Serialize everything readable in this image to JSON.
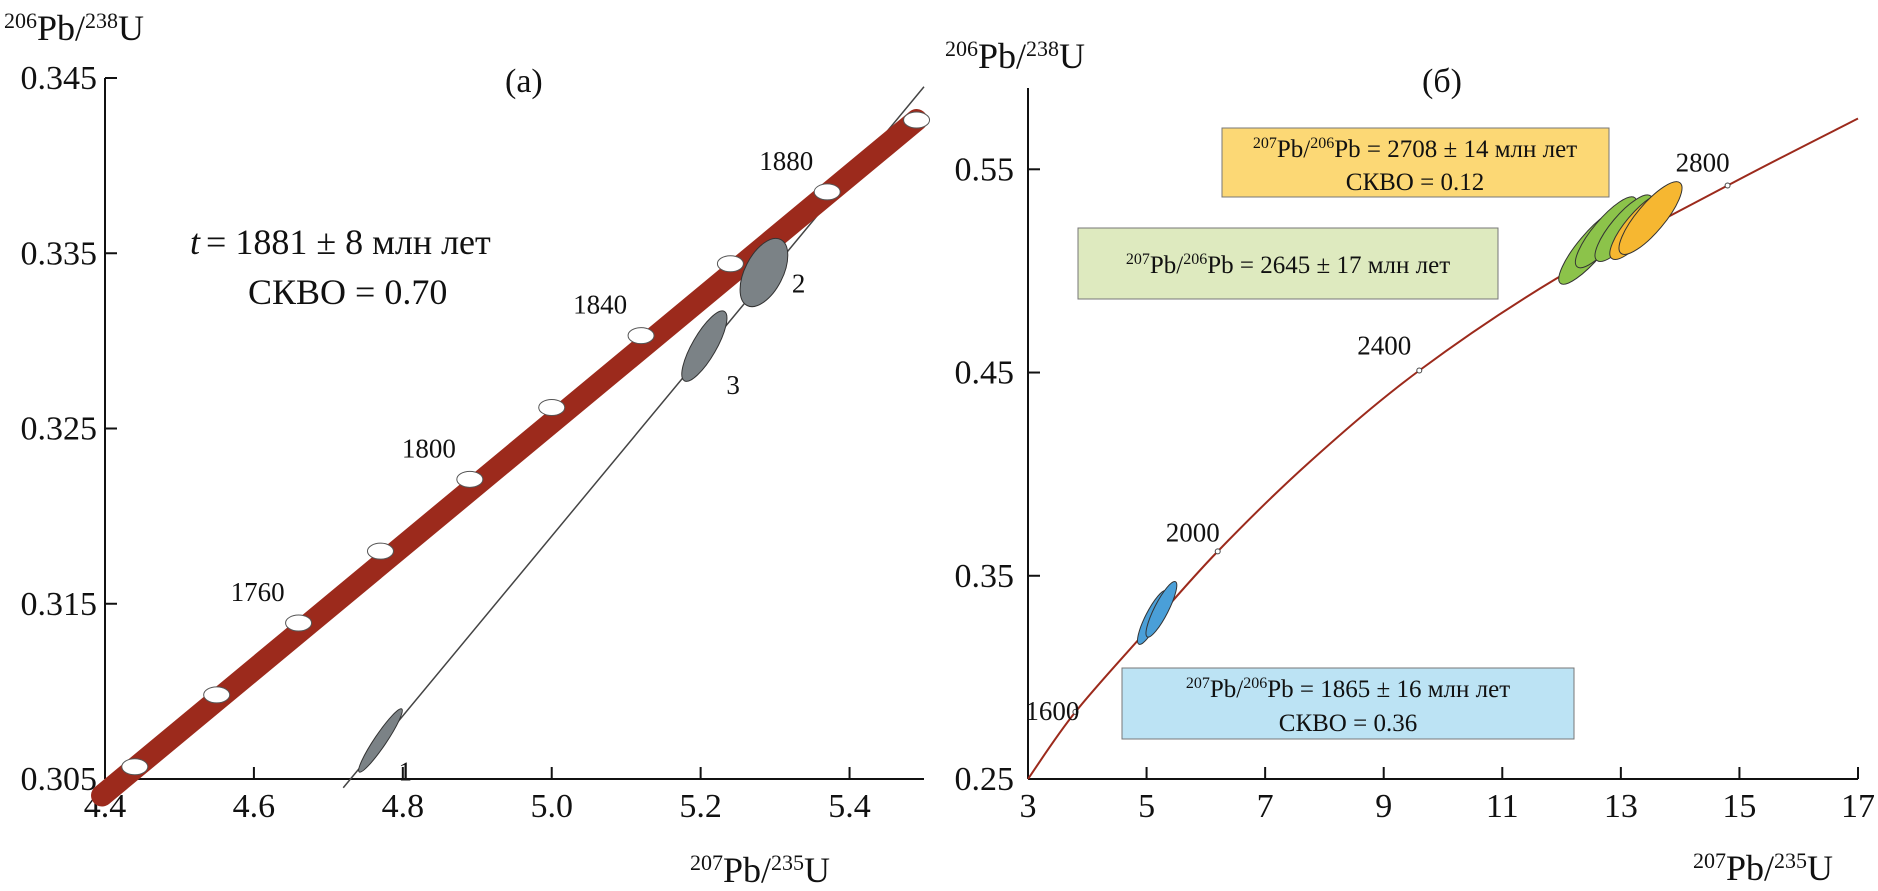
{
  "chart_data": [
    {
      "type": "scatter",
      "subtype": "concordia",
      "panel_label": "(а)",
      "xlabel": {
        "sup": "207",
        "base": "Pb/",
        "sup2": "235",
        "base2": "U"
      },
      "ylabel": {
        "sup": "206",
        "base": "Pb/",
        "sup2": "238",
        "base2": "U"
      },
      "xlim": [
        4.4,
        5.5
      ],
      "ylim": [
        0.305,
        0.345
      ],
      "x_ticks": [
        4.4,
        4.6,
        4.8,
        5.0,
        5.2,
        5.4
      ],
      "x_tick_labels": [
        "4.4",
        "4.6",
        "4.8",
        "5.0",
        "5.2",
        "5.4"
      ],
      "y_ticks": [
        0.305,
        0.315,
        0.325,
        0.335,
        0.345
      ],
      "y_tick_labels": [
        "0.305",
        "0.315",
        "0.325",
        "0.335",
        "0.345"
      ],
      "concordia_color": "#9c2a1c",
      "concordia_points": [
        {
          "x": 4.44,
          "y": 0.3057,
          "label": ""
        },
        {
          "x": 4.55,
          "y": 0.3098,
          "label": ""
        },
        {
          "x": 4.66,
          "y": 0.3139,
          "label": "1760"
        },
        {
          "x": 4.77,
          "y": 0.318,
          "label": ""
        },
        {
          "x": 4.89,
          "y": 0.3221,
          "label": "1800"
        },
        {
          "x": 5.0,
          "y": 0.3262,
          "label": ""
        },
        {
          "x": 5.12,
          "y": 0.3303,
          "label": "1840"
        },
        {
          "x": 5.24,
          "y": 0.3344,
          "label": ""
        },
        {
          "x": 5.37,
          "y": 0.3385,
          "label": "1880"
        },
        {
          "x": 5.49,
          "y": 0.3426,
          "label": ""
        }
      ],
      "discordia": {
        "x1": 4.72,
        "y1": 0.3045,
        "x2": 5.5,
        "y2": 0.3445
      },
      "spots": [
        {
          "name": "1",
          "cx": 4.77,
          "cy": 0.3072,
          "rx_px": 6,
          "ry_px": 38,
          "angle": 34,
          "color": "#7b8286"
        },
        {
          "name": "3",
          "cx": 5.205,
          "cy": 0.3297,
          "rx_px": 12,
          "ry_px": 40,
          "angle": 30,
          "color": "#7b8286"
        },
        {
          "name": "2",
          "cx": 5.285,
          "cy": 0.3339,
          "rx_px": 19,
          "ry_px": 37,
          "angle": 27,
          "color": "#7b8286"
        }
      ],
      "stats": {
        "age_line": "= 1881 ± 8 млн лет",
        "age_var": "t",
        "mswd_line": "СКВО = 0.70"
      }
    },
    {
      "type": "scatter",
      "subtype": "concordia",
      "panel_label": "(б)",
      "xlabel": {
        "sup": "207",
        "base": "Pb/",
        "sup2": "235",
        "base2": "U"
      },
      "ylabel": {
        "sup": "206",
        "base": "Pb/",
        "sup2": "238",
        "base2": "U"
      },
      "xlim": [
        3,
        17
      ],
      "ylim": [
        0.25,
        0.59
      ],
      "x_ticks": [
        3,
        5,
        7,
        9,
        11,
        13,
        15,
        17
      ],
      "x_tick_labels": [
        "3",
        "5",
        "7",
        "9",
        "11",
        "13",
        "15",
        "17"
      ],
      "y_ticks": [
        0.25,
        0.35,
        0.45,
        0.55
      ],
      "y_tick_labels": [
        "0.25",
        "0.35",
        "0.45",
        "0.55"
      ],
      "concordia_color": "#9c2a1c",
      "concordia_curve": [
        {
          "x": 3.0,
          "y": 0.25
        },
        {
          "x": 3.8,
          "y": 0.283
        },
        {
          "x": 5.0,
          "y": 0.323
        },
        {
          "x": 6.2,
          "y": 0.362
        },
        {
          "x": 7.75,
          "y": 0.406
        },
        {
          "x": 9.6,
          "y": 0.451
        },
        {
          "x": 11.9,
          "y": 0.496
        },
        {
          "x": 14.8,
          "y": 0.542
        },
        {
          "x": 17.0,
          "y": 0.575
        }
      ],
      "age_marks": [
        {
          "x": 3.8,
          "y": 0.283,
          "label": "1600"
        },
        {
          "x": 6.2,
          "y": 0.362,
          "label": "2000"
        },
        {
          "x": 9.6,
          "y": 0.451,
          "label": "2400"
        },
        {
          "x": 14.8,
          "y": 0.542,
          "label": "2800"
        }
      ],
      "spots": [
        {
          "cx": 5.1,
          "cy": 0.3295,
          "rx_px": 7,
          "ry_px": 30,
          "angle": 27,
          "color": "#4a9fd8"
        },
        {
          "cx": 5.25,
          "cy": 0.3335,
          "rx_px": 7,
          "ry_px": 31,
          "angle": 27,
          "color": "#4a9fd8"
        },
        {
          "cx": 12.5,
          "cy": 0.512,
          "rx_px": 13,
          "ry_px": 48,
          "angle": 40,
          "color": "#8cc34a"
        },
        {
          "cx": 12.75,
          "cy": 0.519,
          "rx_px": 13,
          "ry_px": 45,
          "angle": 40,
          "color": "#8cc34a"
        },
        {
          "cx": 13.05,
          "cy": 0.521,
          "rx_px": 13,
          "ry_px": 42,
          "angle": 40,
          "color": "#8cc34a"
        },
        {
          "cx": 13.3,
          "cy": 0.522,
          "rx_px": 13,
          "ry_px": 42,
          "angle": 40,
          "color": "#f6b731"
        },
        {
          "cx": 13.5,
          "cy": 0.526,
          "rx_px": 14,
          "ry_px": 46,
          "angle": 40,
          "color": "#f6b731"
        }
      ],
      "boxes": [
        {
          "name": "yellow",
          "color": "#fcd875",
          "sup": "207",
          "mid": "Pb/",
          "sup2": "206",
          "line1": "Pb = 2708 ± 14 млн лет",
          "line2": "СКВО = 0.12"
        },
        {
          "name": "green",
          "color": "#deeabf",
          "sup": "207",
          "mid": "Pb/",
          "sup2": "206",
          "line1": "Pb = 2645 ± 17 млн лет",
          "line2": ""
        },
        {
          "name": "blue",
          "color": "#bce3f4",
          "sup": "207",
          "mid": "Pb/",
          "sup2": "206",
          "line1": "Pb = 1865 ± 16 млн лет",
          "line2": "СКВО = 0.36"
        }
      ]
    }
  ]
}
